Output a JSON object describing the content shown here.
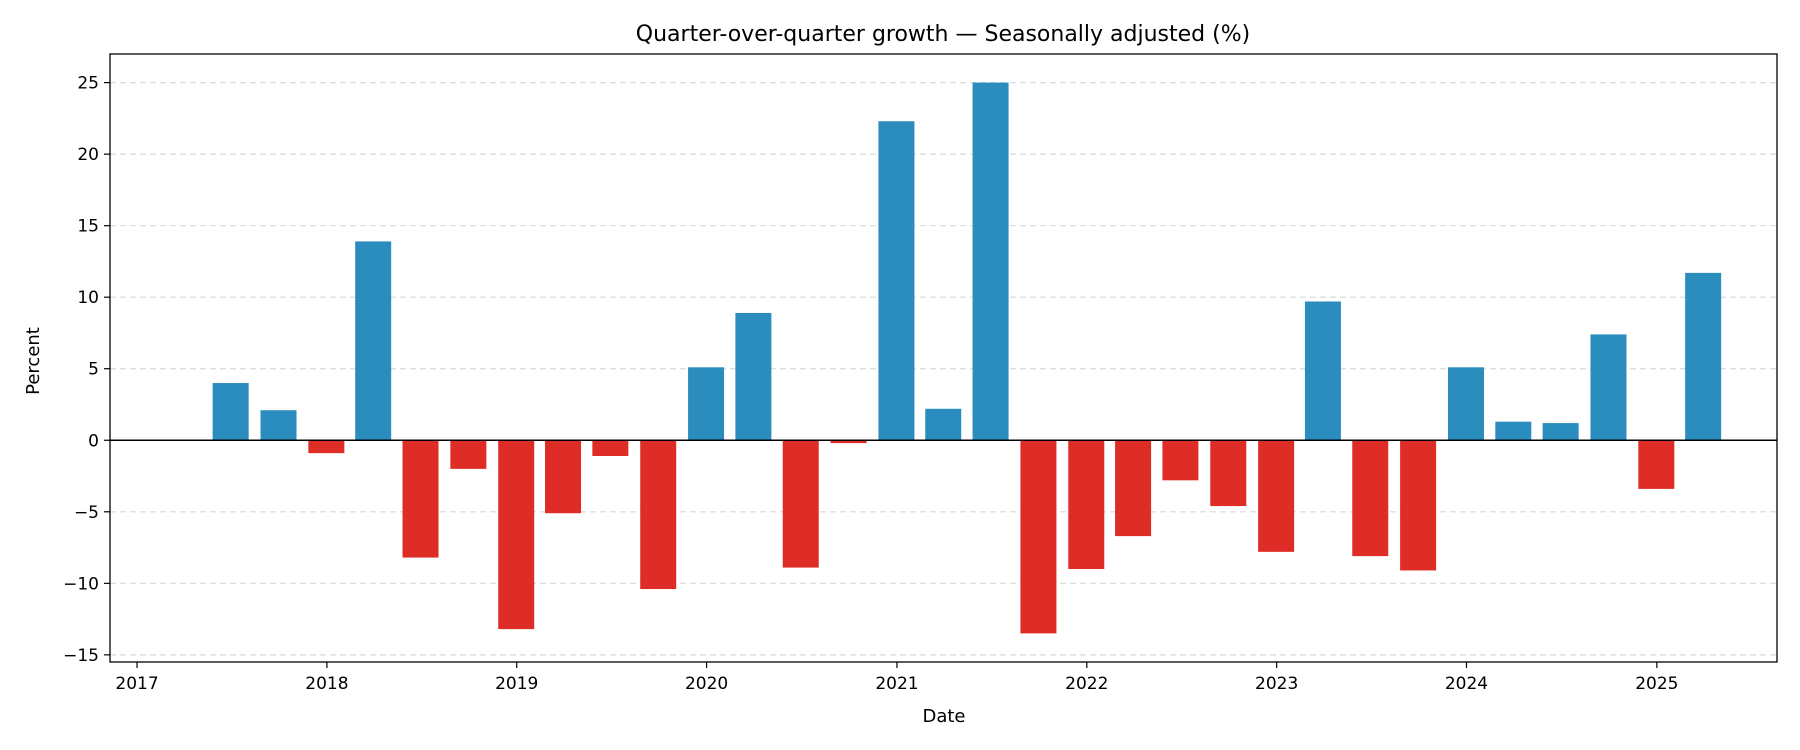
{
  "chart_data": {
    "type": "bar",
    "title": "Quarter-over-quarter growth — Seasonally adjusted (%)",
    "xlabel": "Date",
    "ylabel": "Percent",
    "ylim": [
      -15.5,
      27
    ],
    "xlim": [
      "2016-11-10",
      "2025-08-20"
    ],
    "yticks": [
      25,
      20,
      15,
      10,
      5,
      0,
      -5,
      -10,
      -15
    ],
    "xticks": [
      "2017",
      "2018",
      "2019",
      "2020",
      "2021",
      "2022",
      "2023",
      "2024",
      "2025"
    ],
    "grid": "y-dashed",
    "colors": {
      "positive": "#2b8cbe",
      "negative": "#de2d26",
      "grid": "#d9d9d9",
      "zero_line": "#000000"
    },
    "x": [
      "2017-06-30",
      "2017-09-30",
      "2017-12-31",
      "2018-03-31",
      "2018-06-30",
      "2018-09-30",
      "2018-12-31",
      "2019-03-31",
      "2019-06-30",
      "2019-09-30",
      "2019-12-31",
      "2020-03-31",
      "2020-06-30",
      "2020-09-30",
      "2020-12-31",
      "2021-03-31",
      "2021-06-30",
      "2021-09-30",
      "2021-12-31",
      "2022-03-31",
      "2022-06-30",
      "2022-09-30",
      "2022-12-31",
      "2023-03-31",
      "2023-06-30",
      "2023-09-30",
      "2023-12-31",
      "2024-03-31",
      "2024-06-30",
      "2024-09-30",
      "2024-12-31",
      "2025-03-31"
    ],
    "values": [
      4.0,
      2.1,
      -0.9,
      13.9,
      -8.2,
      -2.0,
      -13.2,
      -5.1,
      -1.1,
      -10.4,
      5.1,
      8.9,
      -8.9,
      -0.2,
      22.3,
      2.2,
      25.0,
      -13.5,
      -9.0,
      -6.7,
      -2.8,
      -4.6,
      -7.8,
      9.7,
      -8.1,
      -9.1,
      5.1,
      1.3,
      1.2,
      7.4,
      -3.4,
      11.7
    ]
  }
}
